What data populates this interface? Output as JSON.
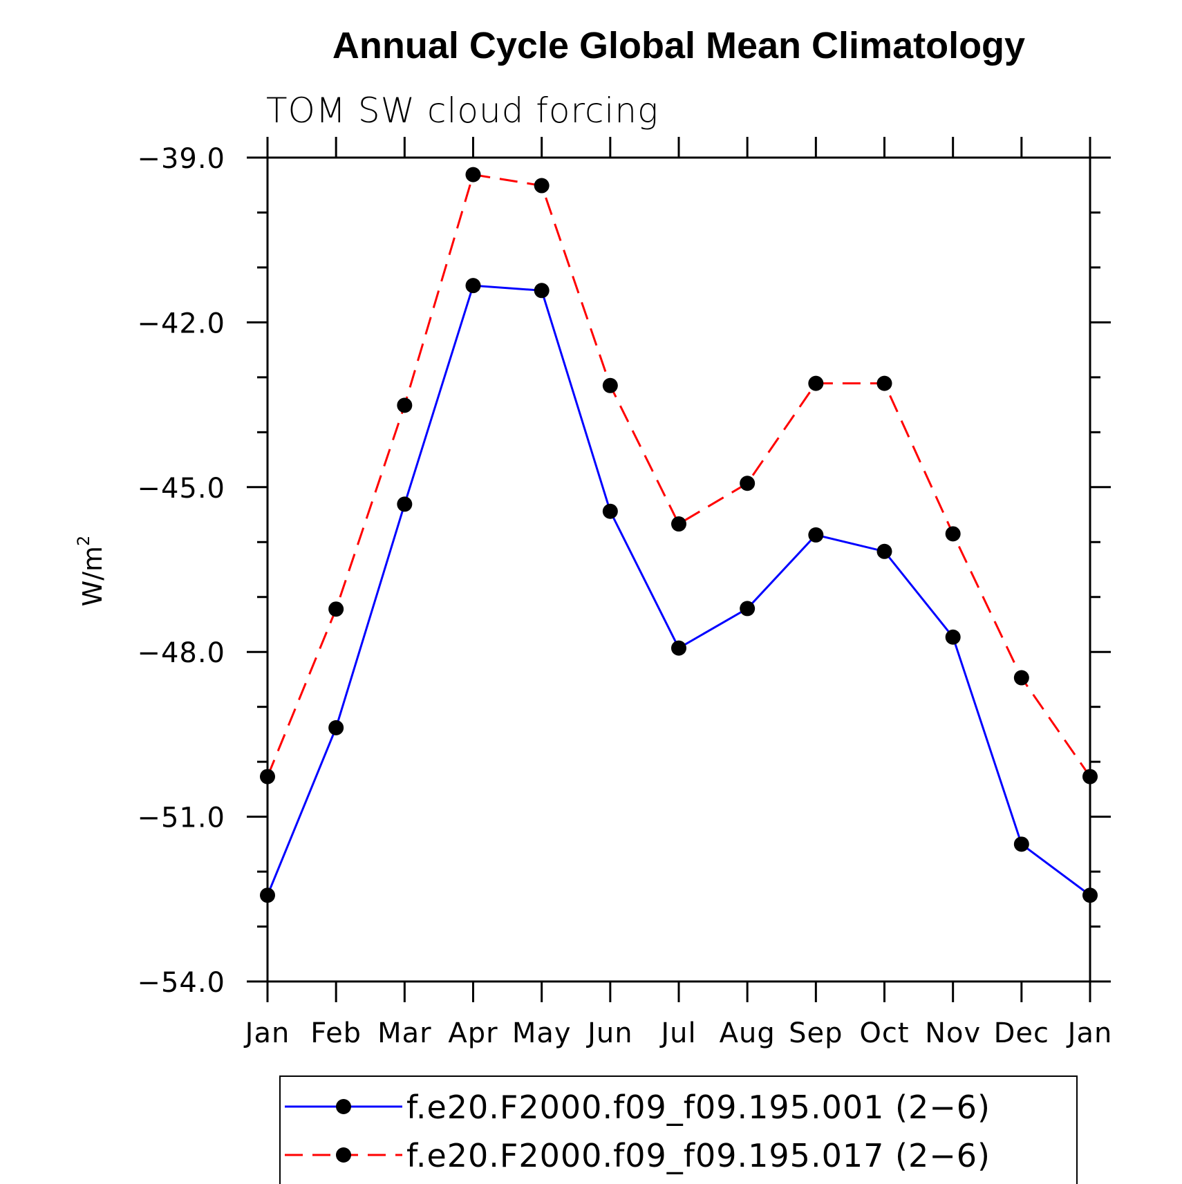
{
  "chart_data": {
    "type": "line",
    "title": "Annual Cycle Global Mean Climatology",
    "subtitle": "TOM SW cloud forcing",
    "ylabel": "W/m",
    "ylabel_superscript": "2",
    "ylim": [
      -54.0,
      -39.0
    ],
    "yticks": [
      -39.0,
      -42.0,
      -45.0,
      -48.0,
      -51.0,
      -54.0
    ],
    "ytick_labels": [
      "−39.0",
      "−42.0",
      "−45.0",
      "−48.0",
      "−51.0",
      "−54.0"
    ],
    "categories": [
      "Jan",
      "Feb",
      "Mar",
      "Apr",
      "May",
      "Jun",
      "Jul",
      "Aug",
      "Sep",
      "Oct",
      "Nov",
      "Dec",
      "Jan"
    ],
    "series": [
      {
        "name": "f.e20.F2000.f09_f09.195.001 (2−6)",
        "color": "#0000ff",
        "dash": "solid",
        "values": [
          -52.43,
          -49.38,
          -45.31,
          -41.33,
          -41.42,
          -45.44,
          -47.93,
          -47.21,
          -45.87,
          -46.17,
          -47.73,
          -51.5,
          -52.43
        ]
      },
      {
        "name": "f.e20.F2000.f09_f09.195.017 (2−6)",
        "color": "#ff0000",
        "dash": "dashed",
        "values": [
          -50.27,
          -47.22,
          -43.51,
          -39.31,
          -39.51,
          -43.15,
          -45.67,
          -44.93,
          -43.11,
          -43.11,
          -45.85,
          -48.47,
          -50.27
        ]
      }
    ]
  }
}
